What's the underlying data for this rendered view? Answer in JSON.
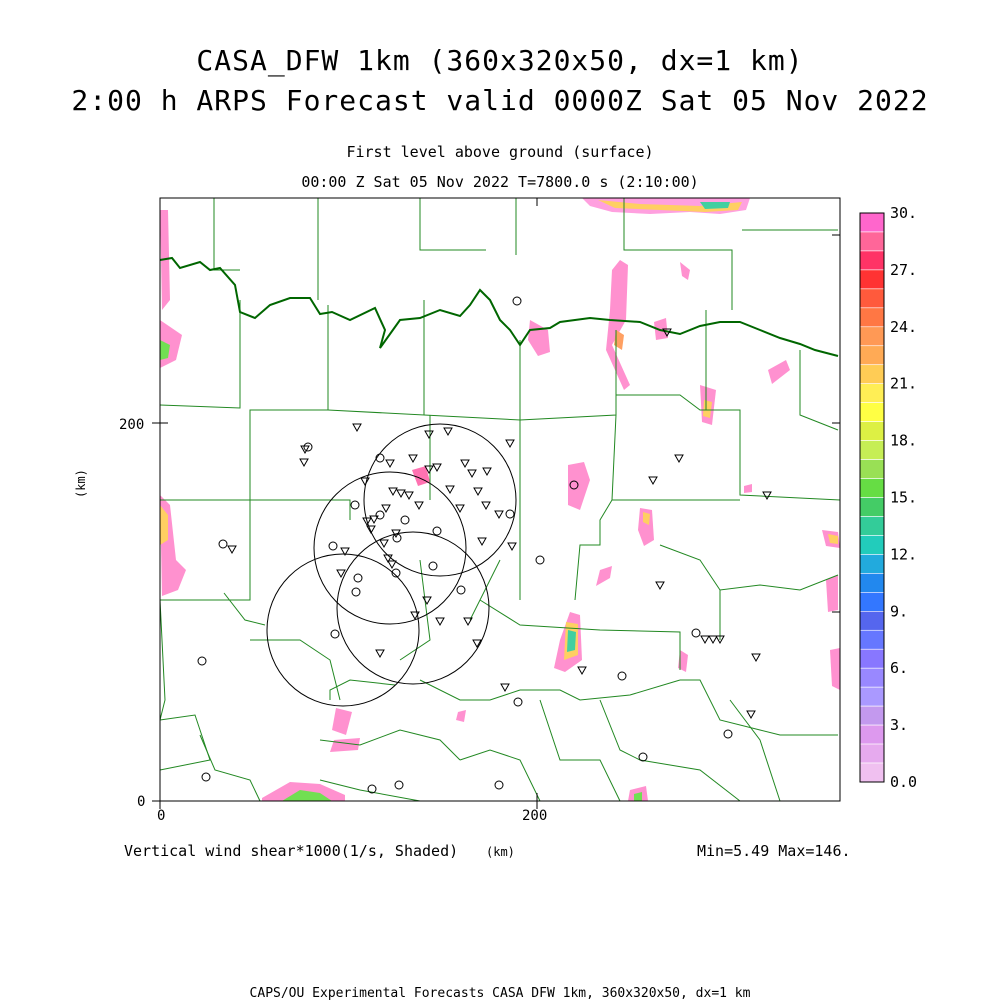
{
  "header": {
    "title_line1": "CASA_DFW 1km (360x320x50, dx=1 km)",
    "title_line2": "2:00 h ARPS Forecast valid 0000Z Sat 05 Nov 2022",
    "level": "First level above ground (surface)",
    "time": "00:00 Z Sat 05 Nov 2022   T=7800.0 s (2:10:00)"
  },
  "axes": {
    "x_ticks": [
      "0",
      "200"
    ],
    "y_ticks": [
      "0",
      "200"
    ],
    "y_unit": "(km)",
    "x_unit": "(km)",
    "x_range_km": [
      0,
      360
    ],
    "y_range_km": [
      0,
      320
    ]
  },
  "footer": {
    "field_label": "Vertical wind shear*1000(1/s, Shaded)",
    "minmax": "Min=5.49  Max=146.",
    "credit": "CAPS/OU Experimental Forecasts  CASA DFW 1km, 360x320x50, dx=1 km"
  },
  "colorbar": {
    "labels": [
      "30.",
      "27.",
      "24.",
      "21.",
      "18.",
      "15.",
      "12.",
      "9.",
      "6.",
      "3.",
      "0.0"
    ],
    "levels": [
      0,
      30
    ],
    "colors": [
      "#ff66cc",
      "#ff6699",
      "#ff3366",
      "#ff3333",
      "#ff5a3c",
      "#ff7744",
      "#ff9955",
      "#ffaa55",
      "#ffcc55",
      "#ffee55",
      "#ffff44",
      "#ddf044",
      "#c6ee55",
      "#99e055",
      "#66dd44",
      "#44cc66",
      "#33cc99",
      "#22ccbb",
      "#22aadd",
      "#2288ee",
      "#3377ff",
      "#5566ee",
      "#6677ff",
      "#8877ff",
      "#9988ff",
      "#aa99ff",
      "#c399ee",
      "#dd99ee",
      "#e6aaee",
      "#f0c0f0"
    ]
  },
  "map": {
    "red_river_color": "#006600",
    "county_line_color": "#228822",
    "radar_ring_radius_km": 40
  }
}
